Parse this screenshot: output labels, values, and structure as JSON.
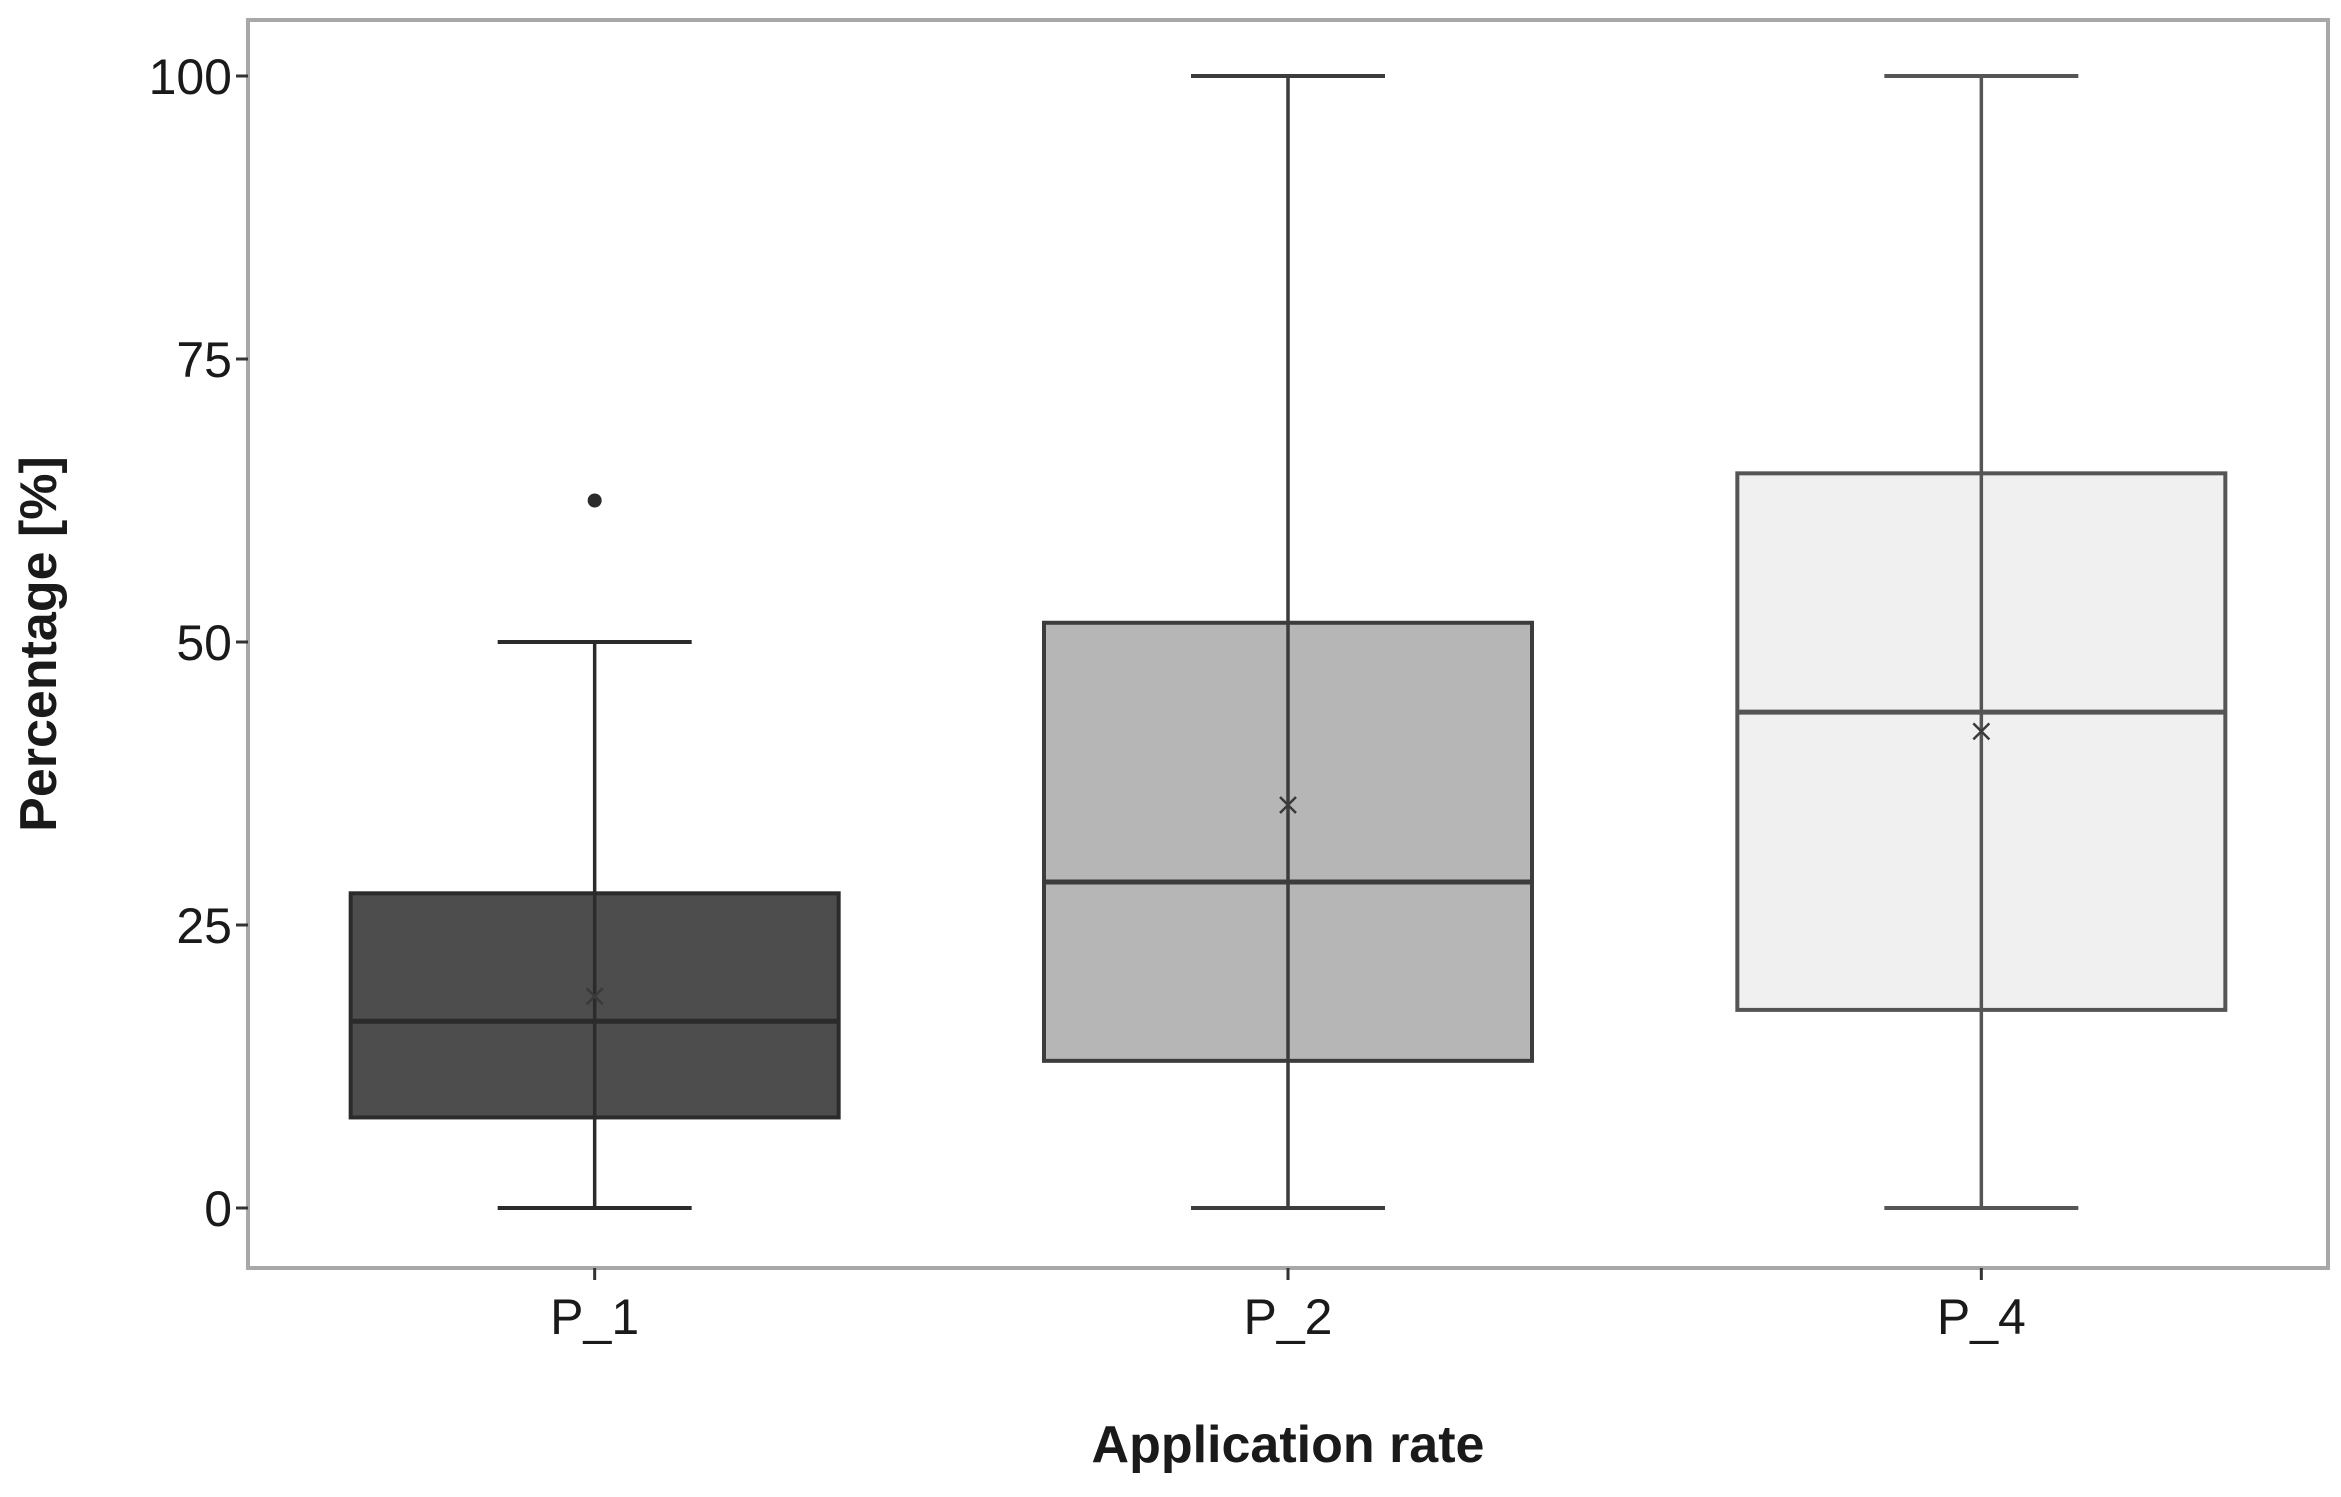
{
  "chart_data": {
    "type": "boxplot",
    "title": "",
    "xlabel": "Application rate",
    "ylabel": "Percentage [%]",
    "ylim": [
      -5,
      105
    ],
    "yticks": [
      0,
      25,
      50,
      75,
      100
    ],
    "grid": false,
    "categories": [
      "P_1",
      "P_2",
      "P_4"
    ],
    "boxes": [
      {
        "category": "P_1",
        "min": 0,
        "q1": 8,
        "median": 16.5,
        "q3": 27.8,
        "max": 50,
        "mean": 18.7,
        "outliers": [
          62.5
        ],
        "fill": "#4d4d4d",
        "stroke": "#2b2b2b"
      },
      {
        "category": "P_2",
        "min": 0,
        "q1": 13,
        "median": 28.8,
        "q3": 51.7,
        "max": 100,
        "mean": 35.6,
        "outliers": [],
        "fill": "#b6b6b6",
        "stroke": "#3c3c3c"
      },
      {
        "category": "P_4",
        "min": 0,
        "q1": 17.5,
        "median": 43.8,
        "q3": 64.9,
        "max": 100,
        "mean": 42.1,
        "outliers": [],
        "fill": "#f0f0f0",
        "stroke": "#555555"
      }
    ]
  }
}
